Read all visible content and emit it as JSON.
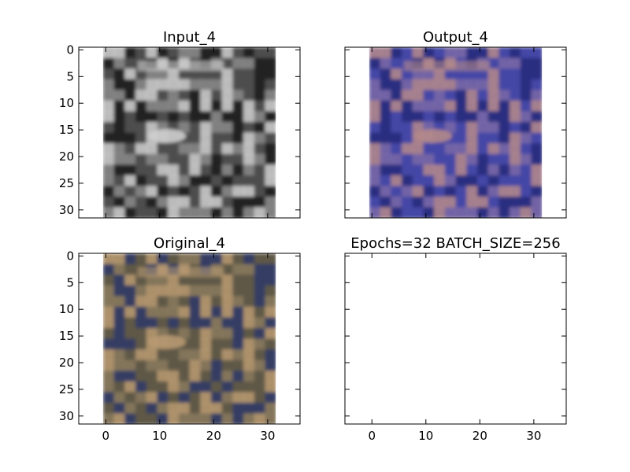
{
  "chart_data": [
    {
      "type": "image",
      "title": "Input_4",
      "image": "grayscale",
      "xlim": [
        -5,
        36
      ],
      "ylim": [
        31.5,
        -0.5
      ],
      "yticks": [
        0,
        5,
        10,
        15,
        20,
        25,
        30
      ],
      "show_xticks": false,
      "show_yticks": true,
      "palette": [
        "#1c1c1c",
        "#4e4e4e",
        "#8a8a8a",
        "#cfcfcf"
      ]
    },
    {
      "type": "image",
      "title": "Output_4",
      "image": "blue-tinted reconstruction",
      "xlim": [
        -5,
        36
      ],
      "ylim": [
        31.5,
        -0.5
      ],
      "show_xticks": false,
      "show_yticks": false,
      "palette": [
        "#252a7a",
        "#4446a6",
        "#7a6aa6",
        "#b58a8a"
      ]
    },
    {
      "type": "image",
      "title": "Original_4",
      "image": "color",
      "xlim": [
        -5,
        36
      ],
      "ylim": [
        31.5,
        -0.5
      ],
      "xticks": [
        0,
        10,
        20,
        30
      ],
      "yticks": [
        0,
        5,
        10,
        15,
        20,
        25,
        30
      ],
      "show_xticks": true,
      "show_yticks": true,
      "palette": [
        "#2d3a6a",
        "#5e5846",
        "#8a7a5e",
        "#b89a72"
      ]
    },
    {
      "type": "image",
      "title": "Epochs=32 BATCH_SIZE=256",
      "image": "empty",
      "xlim": [
        -5,
        36
      ],
      "ylim": [
        31.5,
        -0.5
      ],
      "xticks": [
        0,
        10,
        20,
        30
      ],
      "show_xticks": true,
      "show_yticks": false,
      "palette": []
    }
  ]
}
